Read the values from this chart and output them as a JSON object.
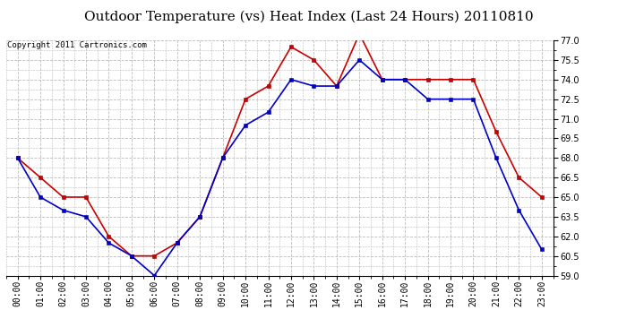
{
  "title": "Outdoor Temperature (vs) Heat Index (Last 24 Hours) 20110810",
  "copyright_text": "Copyright 2011 Cartronics.com",
  "x_labels": [
    "00:00",
    "01:00",
    "02:00",
    "03:00",
    "04:00",
    "05:00",
    "06:00",
    "07:00",
    "08:00",
    "09:00",
    "10:00",
    "11:00",
    "12:00",
    "13:00",
    "14:00",
    "15:00",
    "16:00",
    "17:00",
    "18:00",
    "19:00",
    "20:00",
    "21:00",
    "22:00",
    "23:00"
  ],
  "heat_index": [
    68.0,
    66.5,
    65.0,
    65.0,
    62.0,
    60.5,
    60.5,
    61.5,
    63.5,
    68.0,
    72.5,
    73.5,
    76.5,
    75.5,
    73.5,
    77.5,
    74.0,
    74.0,
    74.0,
    74.0,
    74.0,
    70.0,
    66.5,
    65.0
  ],
  "temperature": [
    68.0,
    65.0,
    64.0,
    63.5,
    61.5,
    60.5,
    59.0,
    61.5,
    63.5,
    68.0,
    70.5,
    71.5,
    74.0,
    73.5,
    73.5,
    75.5,
    74.0,
    74.0,
    72.5,
    72.5,
    72.5,
    68.0,
    64.0,
    61.0
  ],
  "ylim": [
    59.0,
    77.0
  ],
  "yticks": [
    59.0,
    60.5,
    62.0,
    63.5,
    65.0,
    66.5,
    68.0,
    69.5,
    71.0,
    72.5,
    74.0,
    75.5,
    77.0
  ],
  "heat_index_color": "#cc0000",
  "temperature_color": "#0000cc",
  "background_color": "#ffffff",
  "grid_color": "#bbbbbb",
  "title_fontsize": 11,
  "copyright_fontsize": 6.5,
  "tick_fontsize": 7,
  "marker_size": 3.5
}
